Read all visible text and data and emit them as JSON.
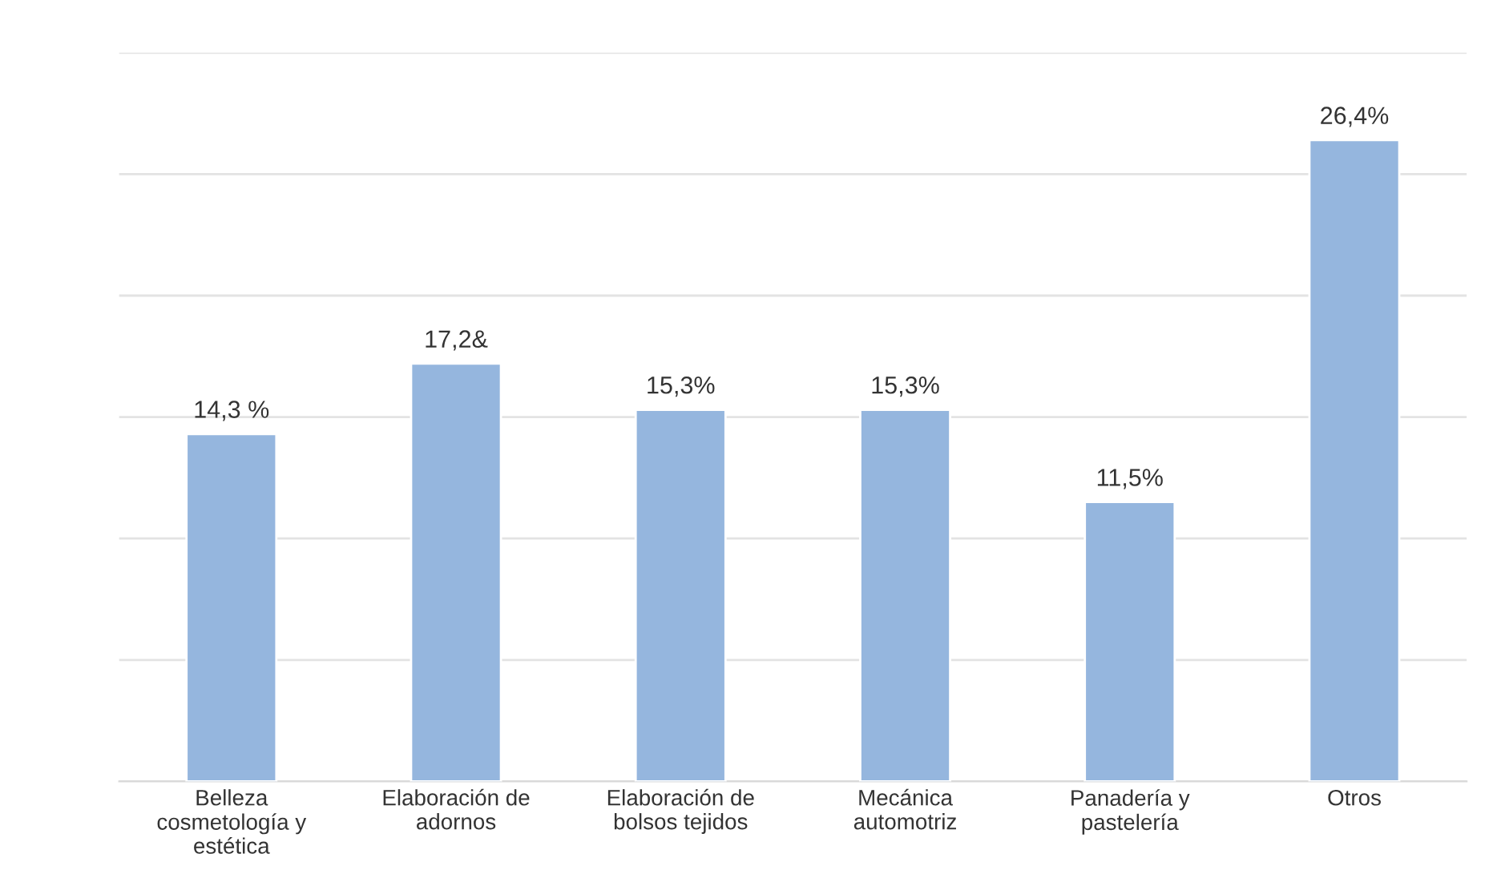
{
  "chart_data": {
    "type": "bar",
    "categories": [
      "Belleza\ncosmetología y\nestética",
      "Elaboración de\nadornos",
      "Elaboración de\nbolsos tejidos",
      "Mecánica\nautomotriz",
      "Panadería y\npastelería",
      "Otros"
    ],
    "values": [
      14.3,
      17.2,
      15.3,
      15.3,
      11.5,
      26.4
    ],
    "value_labels": [
      "14,3 %",
      "17,2&",
      "15,3%",
      "15,3%",
      "11,5%",
      "26,4%"
    ],
    "color": "#95b6de",
    "ylim": [
      0,
      30
    ],
    "yticks": [
      {
        "value": 0,
        "label": null
      },
      {
        "value": 5,
        "label": null
      },
      {
        "value": 10,
        "label": null
      },
      {
        "value": 15,
        "label": null
      },
      {
        "value": 20,
        "label": null
      },
      {
        "value": 25,
        "label": null
      },
      {
        "value": 30,
        "label": null
      }
    ],
    "grid": "y",
    "legend": false
  }
}
